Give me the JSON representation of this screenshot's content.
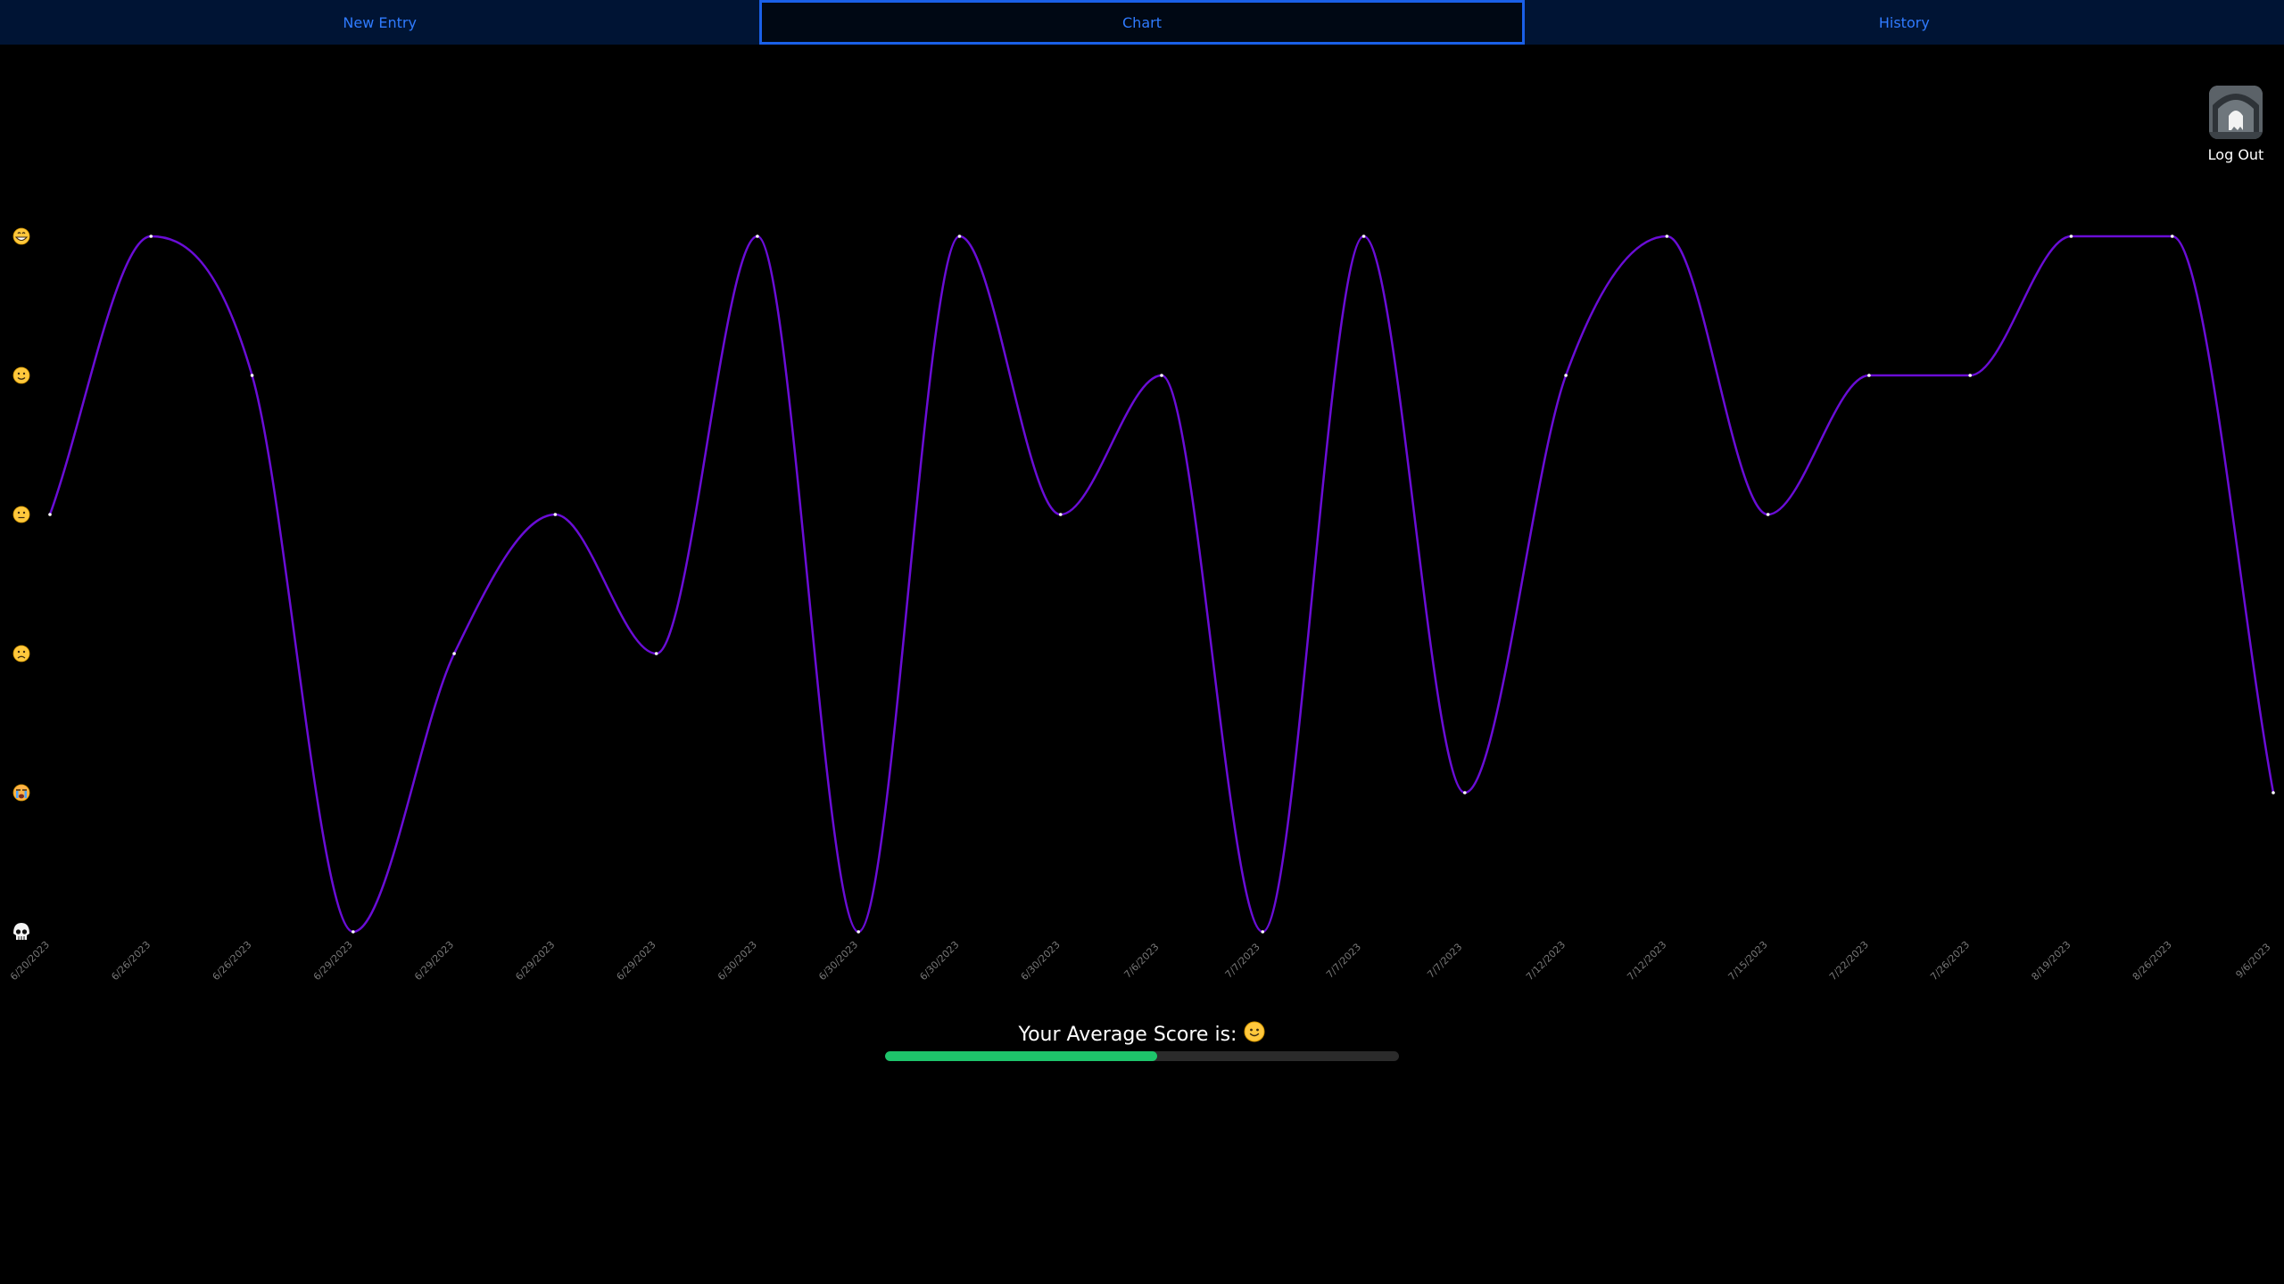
{
  "tabs": [
    {
      "label": "New Entry",
      "active": false
    },
    {
      "label": "Chart",
      "active": true
    },
    {
      "label": "History",
      "active": false
    }
  ],
  "logout": {
    "label": "Log Out"
  },
  "average": {
    "label": "Your Average Score is:",
    "emoji_icon": "slightly-smiling-face-icon",
    "progress_fraction": 0.53
  },
  "colors": {
    "tab_bar": "#001434",
    "tab_text": "#2f7bff",
    "active_border": "#1a60e8",
    "line": "#6a0dd6",
    "point": "#ffffff",
    "progress_fill": "#1ec46b",
    "progress_track": "#2b2b2b",
    "tick_label": "#777777"
  },
  "chart_data": {
    "type": "line",
    "title": "",
    "xlabel": "",
    "ylabel": "",
    "ylim": [
      0,
      5
    ],
    "y_tick_icons": [
      {
        "value": 5,
        "icon": "grinning-face-icon"
      },
      {
        "value": 4,
        "icon": "slightly-smiling-face-icon"
      },
      {
        "value": 3,
        "icon": "neutral-face-icon"
      },
      {
        "value": 2,
        "icon": "frowning-face-icon"
      },
      {
        "value": 1,
        "icon": "crying-face-icon"
      },
      {
        "value": 0,
        "icon": "skull-icon"
      }
    ],
    "x": [
      "6/20/2023",
      "6/26/2023",
      "6/26/2023",
      "6/29/2023",
      "6/29/2023",
      "6/29/2023",
      "6/29/2023",
      "6/30/2023",
      "6/30/2023",
      "6/30/2023",
      "6/30/2023",
      "7/6/2023",
      "7/7/2023",
      "7/7/2023",
      "7/7/2023",
      "7/12/2023",
      "7/12/2023",
      "7/15/2023",
      "7/22/2023",
      "7/26/2023",
      "8/19/2023",
      "8/26/2023",
      "9/6/2023"
    ],
    "series": [
      {
        "values": [
          3,
          5,
          4,
          0,
          2,
          3,
          2,
          5,
          0,
          5,
          3,
          4,
          0,
          5,
          1,
          4,
          5,
          3,
          4,
          4,
          5,
          5,
          1
        ]
      }
    ]
  }
}
